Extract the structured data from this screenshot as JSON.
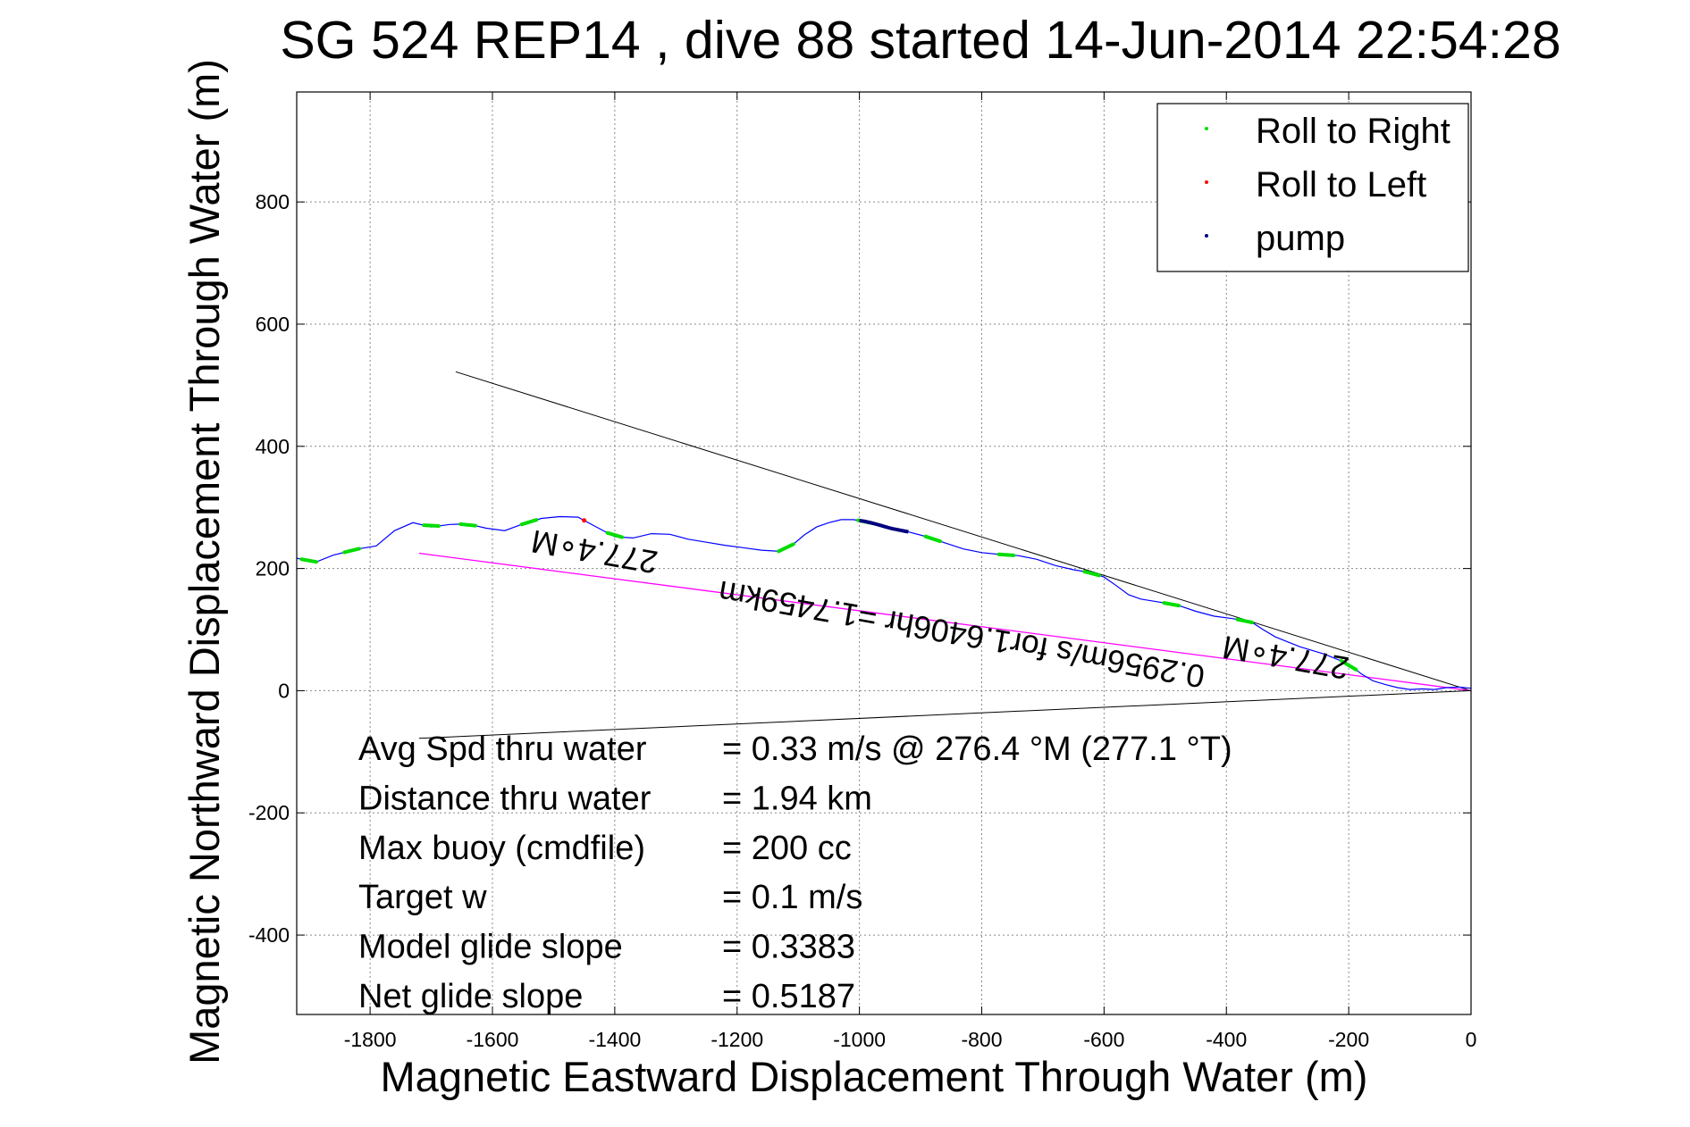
{
  "chart_data": {
    "type": "line",
    "title": "SG 524   REP14  , dive 88 started 14-Jun-2014 22:54:28",
    "xlabel": "Magnetic Eastward Displacement Through Water (m)",
    "ylabel": "Magnetic Northward Displacement Through Water (m)",
    "xlim": [
      -1920,
      0
    ],
    "ylim": [
      -530,
      980
    ],
    "x_ticks": [
      -1800,
      -1600,
      -1400,
      -1200,
      -1000,
      -800,
      -600,
      -400,
      -200,
      0
    ],
    "y_ticks": [
      -400,
      -200,
      0,
      200,
      400,
      600,
      800
    ],
    "grid": true,
    "legend_position": "top-right",
    "legend": [
      {
        "label": "Roll to Right",
        "color": "#00dd00"
      },
      {
        "label": "Roll to Left",
        "color": "#ff0000"
      },
      {
        "label": "pump",
        "color": "#000080"
      }
    ],
    "track": {
      "color": "#0000ff",
      "x": [
        -1920,
        -1890,
        -1860,
        -1820,
        -1790,
        -1760,
        -1730,
        -1700,
        -1670,
        -1640,
        -1610,
        -1580,
        -1550,
        -1520,
        -1490,
        -1460,
        -1430,
        -1400,
        -1370,
        -1340,
        -1310,
        -1280,
        -1250,
        -1220,
        -1190,
        -1160,
        -1130,
        -1110,
        -1090,
        -1070,
        -1050,
        -1030,
        -1010,
        -990,
        -970,
        -950,
        -920,
        -890,
        -860,
        -830,
        -800,
        -770,
        -740,
        -710,
        -680,
        -650,
        -620,
        -600,
        -580,
        -560,
        -540,
        -510,
        -480,
        -450,
        -420,
        -390,
        -360,
        -340,
        -320,
        -300,
        -280,
        -260,
        -240,
        -220,
        -200,
        -180,
        -160,
        -140,
        -120,
        -100,
        -80,
        -60,
        -40,
        -20,
        0
      ],
      "y": [
        217,
        210,
        222,
        232,
        237,
        262,
        275,
        268,
        272,
        273,
        266,
        262,
        273,
        282,
        285,
        284,
        268,
        252,
        250,
        257,
        256,
        248,
        243,
        238,
        234,
        230,
        228,
        238,
        255,
        268,
        275,
        280,
        280,
        277,
        272,
        266,
        260,
        252,
        242,
        232,
        226,
        223,
        221,
        215,
        205,
        198,
        193,
        186,
        172,
        157,
        150,
        145,
        140,
        130,
        122,
        118,
        113,
        100,
        88,
        80,
        72,
        66,
        60,
        52,
        44,
        28,
        16,
        10,
        5,
        2,
        3,
        2,
        5,
        6,
        4
      ]
    },
    "roll_right_x": [
      -1900,
      -1830,
      -1700,
      -1640,
      -1540,
      -1400,
      -1120,
      -990,
      -880,
      -760,
      -620,
      -490,
      -370,
      -200
    ],
    "roll_left_x": [
      -1450
    ],
    "pump_x_range": [
      -1000,
      -920
    ],
    "heading_lines": [
      {
        "x": [
          -1660,
          0
        ],
        "y": [
          522,
          0
        ]
      },
      {
        "x": [
          -1720,
          0
        ],
        "y": [
          -78,
          0
        ]
      }
    ],
    "net_track": {
      "x": [
        -1720,
        0
      ],
      "y": [
        225,
        0
      ],
      "color": "#ff00ff"
    },
    "annotations": [
      {
        "text": "277.4∘M",
        "x": -1430,
        "y": 245,
        "rotate": 190
      },
      {
        "text": "277.4∘M",
        "x": -300,
        "y": 72,
        "rotate": 190
      },
      {
        "text": "0.2956m/s for1.6406hr =1.7459km",
        "x": -830,
        "y": 110,
        "rotate": 190
      }
    ],
    "stats": [
      {
        "label": "Avg Spd thru water",
        "value": "=  0.33 m/s @ 276.4 °M (277.1 °T)"
      },
      {
        "label": "Distance thru water",
        "value": "=  1.94 km"
      },
      {
        "label": "Max buoy (cmdfile)",
        "value": "= 200 cc"
      },
      {
        "label": "Target w",
        "value": "= 0.1 m/s"
      },
      {
        "label": "Model glide slope",
        "value": "= 0.3383"
      },
      {
        "label": "Net glide slope",
        "value": "= 0.5187"
      }
    ]
  }
}
